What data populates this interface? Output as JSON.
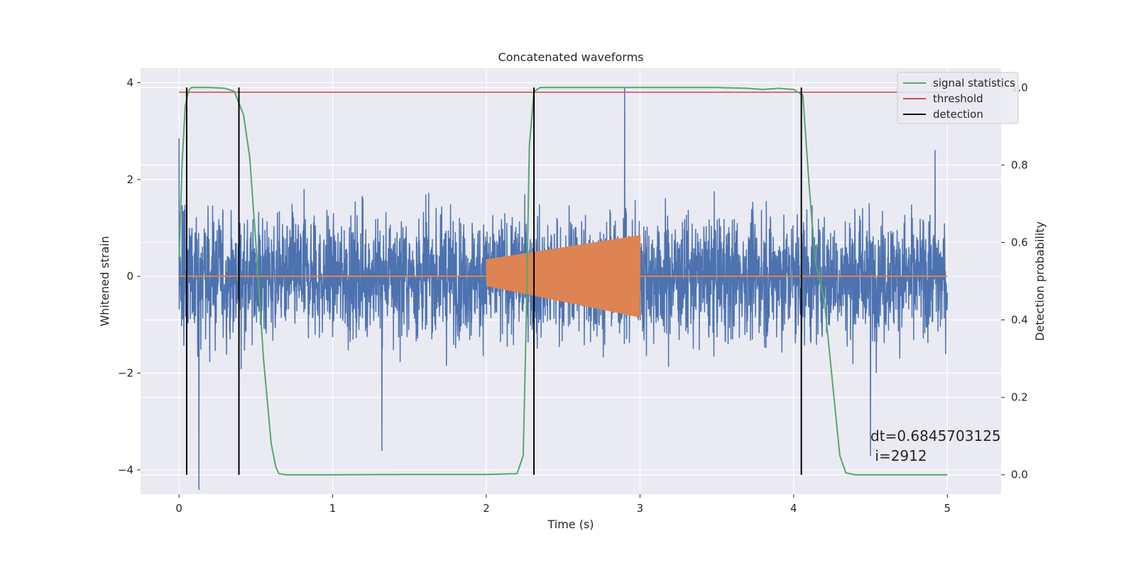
{
  "chart_data": {
    "type": "line",
    "title": "Concatenated waveforms",
    "xlabel": "Time (s)",
    "ylabel": "Whitened strain",
    "y2label": "Detection probability",
    "xlim": [
      -0.25,
      5.35
    ],
    "ylim": [
      -4.5,
      4.3
    ],
    "y2lim": [
      -0.05,
      1.05
    ],
    "x_ticks": [
      0,
      1,
      2,
      3,
      4,
      5
    ],
    "y_ticks": [
      -4,
      -2,
      0,
      2,
      4
    ],
    "y2_ticks": [
      0.0,
      0.2,
      0.4,
      0.6,
      0.8,
      1.0
    ],
    "x_tick_labels": [
      "0",
      "1",
      "2",
      "3",
      "4",
      "5"
    ],
    "y_tick_labels": [
      "−4",
      "−2",
      "0",
      "2",
      "4"
    ],
    "y2_tick_labels": [
      "0.0",
      "0.2",
      "0.4",
      "0.6",
      "0.8",
      "1.0"
    ],
    "grid": true,
    "legend_position": "top-right",
    "colors": {
      "strain": "#4c72b0",
      "injection": "#dd8452",
      "signal_statistics": "#55a868",
      "threshold": "#c44e52",
      "detection": "#000000",
      "plot_background": "#eaeaf2",
      "grid": "#ffffff"
    },
    "series": [
      {
        "name": "",
        "axis": "left",
        "description_kind": "whitened strain noise",
        "x_range": [
          0,
          5
        ],
        "amplitude_typical": 1.6,
        "extremes": [
          [
            0.0,
            2.85
          ],
          [
            0.13,
            -4.4
          ],
          [
            0.39,
            -3.5
          ],
          [
            1.32,
            -3.6
          ],
          [
            2.9,
            3.9
          ],
          [
            4.5,
            -3.7
          ],
          [
            4.92,
            2.6
          ]
        ]
      },
      {
        "name": "",
        "axis": "left",
        "description_kind": "injected chirp",
        "x_range": [
          2.0,
          3.0
        ],
        "envelope_start": [
          0.35,
          -0.2
        ],
        "envelope_end": [
          0.85,
          -0.85
        ]
      },
      {
        "name": "signal statistics",
        "axis": "right",
        "x": [
          0.0,
          0.02,
          0.04,
          0.06,
          0.08,
          0.12,
          0.2,
          0.3,
          0.36,
          0.42,
          0.46,
          0.5,
          0.55,
          0.6,
          0.63,
          0.65,
          0.7,
          1.0,
          1.5,
          2.0,
          2.2,
          2.24,
          2.26,
          2.28,
          2.31,
          2.35,
          2.5,
          3.0,
          3.5,
          3.7,
          3.8,
          3.9,
          4.0,
          4.06,
          4.1,
          4.14,
          4.2,
          4.25,
          4.3,
          4.34,
          4.4,
          5.0
        ],
        "y": [
          0.55,
          0.8,
          0.95,
          0.99,
          1.0,
          1.0,
          1.0,
          0.998,
          0.99,
          0.93,
          0.82,
          0.6,
          0.3,
          0.08,
          0.02,
          0.003,
          0.0,
          0.0,
          0.001,
          0.001,
          0.003,
          0.05,
          0.4,
          0.85,
          0.99,
          1.0,
          1.0,
          1.0,
          1.0,
          0.998,
          0.995,
          0.998,
          0.995,
          0.98,
          0.75,
          0.55,
          0.45,
          0.25,
          0.05,
          0.005,
          0.0,
          0.0
        ]
      },
      {
        "name": "threshold",
        "axis": "right",
        "x": [
          0,
          5
        ],
        "y": [
          0.988,
          0.988
        ]
      }
    ],
    "detections": {
      "name": "detection",
      "x": [
        0.05,
        0.39,
        2.31,
        4.05
      ]
    },
    "annotation": {
      "line1": "dt=0.6845703125",
      "line2": " i=2912",
      "x": 4.5,
      "y": -3.4
    }
  }
}
